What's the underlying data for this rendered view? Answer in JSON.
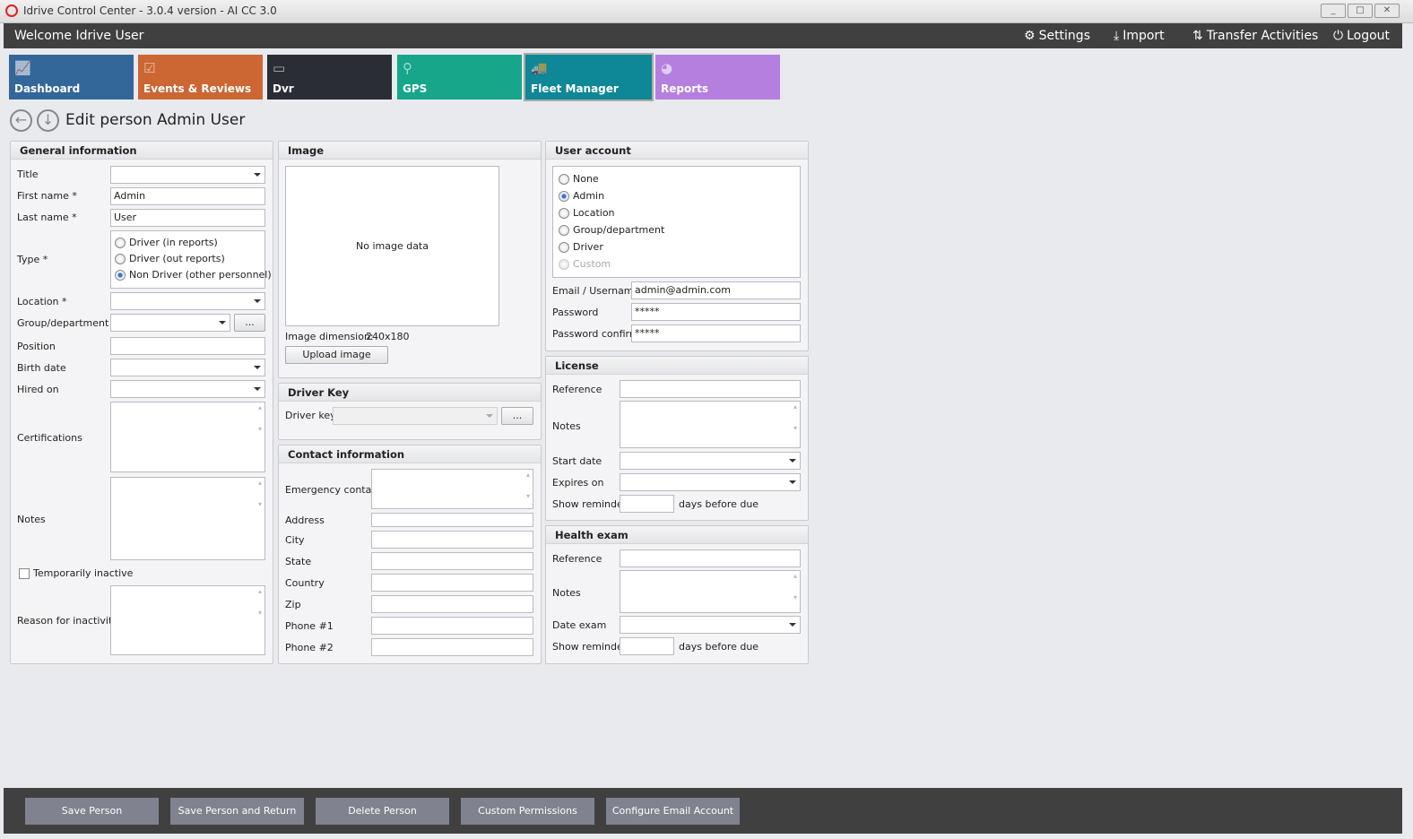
{
  "window": {
    "title": "Idrive Control Center - 3.0.4 version - AI CC 3.0",
    "minimize": "_",
    "maximize": "□",
    "close": "✕"
  },
  "header": {
    "welcome": "Welcome Idrive User",
    "links": [
      {
        "label": "Settings",
        "icon": "gears-icon"
      },
      {
        "label": "Import",
        "icon": "download-icon"
      },
      {
        "label": "Transfer Activities",
        "icon": "transfer-icon"
      },
      {
        "label": "Logout",
        "icon": "power-icon"
      }
    ]
  },
  "tiles": [
    {
      "label": "Dashboard",
      "color": "#336699"
    },
    {
      "label": "Events & Reviews",
      "color": "#cc6633"
    },
    {
      "label": "Dvr",
      "color": "#2a2d33"
    },
    {
      "label": "GPS",
      "color": "#17a68a"
    },
    {
      "label": "Fleet Manager",
      "color": "#0e8797",
      "selected": true
    },
    {
      "label": "Reports",
      "color": "#b57fe0"
    }
  ],
  "page": {
    "title": "Edit person Admin User"
  },
  "general": {
    "header": "General information",
    "title_label": "Title",
    "title_value": "",
    "first_name_label": "First name *",
    "first_name": "Admin",
    "last_name_label": "Last name *",
    "last_name": "User",
    "type_label": "Type *",
    "type_options": [
      "Driver (in reports)",
      "Driver (out reports)",
      "Non Driver (other personnel)"
    ],
    "type_selected": "Non Driver (other personnel)",
    "location_label": "Location *",
    "group_label": "Group/department",
    "group_button": "...",
    "position_label": "Position",
    "birth_label": "Birth date",
    "hired_label": "Hired on",
    "cert_label": "Certifications",
    "notes_label": "Notes",
    "inactive_label": "Temporarily inactive",
    "inactive_checked": false,
    "reason_label": "Reason for inactivity"
  },
  "image": {
    "header": "Image",
    "placeholder": "No image data",
    "dimension_label": "Image dimension:",
    "dimension": "240x180",
    "upload": "Upload image"
  },
  "driver_key": {
    "header": "Driver Key",
    "label": "Driver key",
    "button": "..."
  },
  "contact": {
    "header": "Contact information",
    "fields": [
      "Emergency contact",
      "Address",
      "City",
      "State",
      "Country",
      "Zip",
      "Phone #1",
      "Phone #2"
    ]
  },
  "account": {
    "header": "User account",
    "options": [
      "None",
      "Admin",
      "Location",
      "Group/department",
      "Driver",
      "Custom"
    ],
    "selected": "Admin",
    "email_label": "Email / Username",
    "email": "admin@admin.com",
    "password_label": "Password",
    "password": "*****",
    "confirm_label": "Password confirm",
    "confirm": "*****"
  },
  "license": {
    "header": "License",
    "reference": "Reference",
    "notes": "Notes",
    "start": "Start date",
    "expires": "Expires on",
    "reminder": "Show reminder",
    "days": "days before due"
  },
  "health": {
    "header": "Health exam",
    "reference": "Reference",
    "notes": "Notes",
    "date": "Date exam",
    "reminder": "Show reminder",
    "days": "days before due"
  },
  "footer": {
    "buttons": [
      "Save Person",
      "Save Person and Return",
      "Delete Person",
      "Custom Permissions",
      "Configure Email Account"
    ]
  }
}
